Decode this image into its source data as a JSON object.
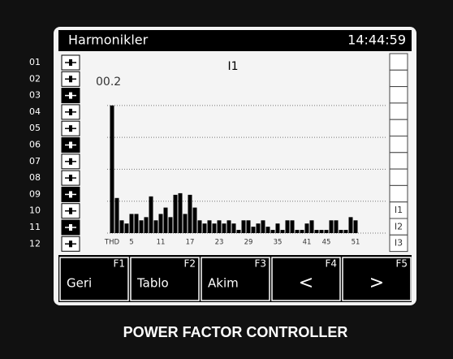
{
  "header": {
    "title": "Harmonikler",
    "time": "14:44:59"
  },
  "steps": [
    {
      "label": "01",
      "active": false
    },
    {
      "label": "02",
      "active": false
    },
    {
      "label": "03",
      "active": true
    },
    {
      "label": "04",
      "active": false
    },
    {
      "label": "05",
      "active": false
    },
    {
      "label": "06",
      "active": true
    },
    {
      "label": "07",
      "active": false
    },
    {
      "label": "08",
      "active": false
    },
    {
      "label": "09",
      "active": true
    },
    {
      "label": "10",
      "active": false
    },
    {
      "label": "11",
      "active": true
    },
    {
      "label": "12",
      "active": false
    }
  ],
  "phases": [
    "I1",
    "I2",
    "I3"
  ],
  "chart_data": {
    "type": "bar",
    "title": "I1",
    "annotation": "00.2",
    "color": "#000000",
    "categories": [
      "THD",
      null,
      null,
      null,
      "5",
      null,
      null,
      null,
      null,
      null,
      "11",
      null,
      null,
      null,
      null,
      null,
      "17",
      null,
      null,
      null,
      null,
      null,
      "23",
      null,
      null,
      null,
      null,
      null,
      "29",
      null,
      null,
      null,
      null,
      null,
      "35",
      null,
      null,
      null,
      null,
      null,
      "41",
      null,
      null,
      null,
      "45",
      null,
      null,
      null,
      null,
      null,
      "51"
    ],
    "values": [
      4.0,
      1.1,
      0.4,
      0.3,
      0.6,
      0.6,
      0.4,
      0.5,
      1.15,
      0.4,
      0.6,
      0.8,
      0.5,
      1.2,
      1.25,
      0.6,
      1.2,
      0.8,
      0.4,
      0.3,
      0.4,
      0.3,
      0.4,
      0.3,
      0.4,
      0.3,
      0.1,
      0.4,
      0.4,
      0.2,
      0.3,
      0.4,
      0.2,
      0.1,
      0.3,
      0.1,
      0.4,
      0.4,
      0.1,
      0.1,
      0.3,
      0.4,
      0.1,
      0.1,
      0.1,
      0.4,
      0.4,
      0.1,
      0.1,
      0.5,
      0.4
    ],
    "ylim": [
      0,
      4.2
    ],
    "yticks": [
      1,
      2,
      3,
      4
    ],
    "grid": true
  },
  "keys": [
    {
      "id": "F1",
      "label": "Geri"
    },
    {
      "id": "F2",
      "label": "Tablo"
    },
    {
      "id": "F3",
      "label": "Akim"
    },
    {
      "id": "F4",
      "label": "<"
    },
    {
      "id": "F5",
      "label": ">"
    }
  ],
  "footer": "POWER FACTOR CONTROLLER"
}
